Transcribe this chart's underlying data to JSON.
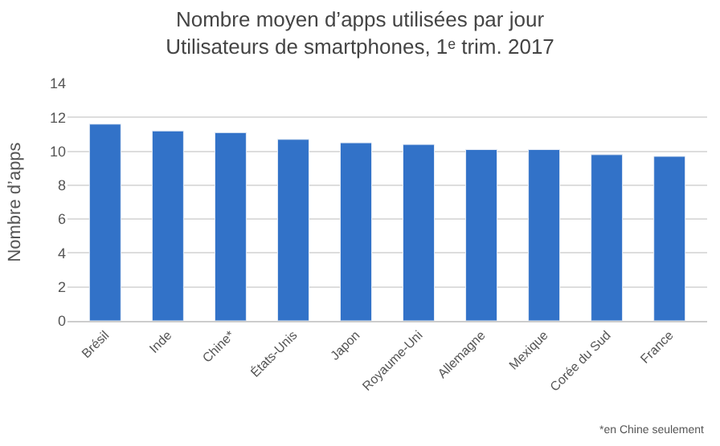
{
  "chart_data": {
    "type": "bar",
    "title": "Nombre moyen d’apps utilisées par jour",
    "subtitle": "Utilisateurs de smartphones, 1ᵉ trim. 2017",
    "ylabel": "Nombre d’apps",
    "categories": [
      "Brésil",
      "Inde",
      "Chine*",
      "États-Unis",
      "Japon",
      "Royaume-Uni",
      "Allemagne",
      "Mexique",
      "Corée du Sud",
      "France"
    ],
    "values": [
      11.6,
      11.2,
      11.1,
      10.7,
      10.5,
      10.4,
      10.1,
      10.1,
      9.8,
      9.7
    ],
    "color": "#3272c8",
    "ylim": [
      0,
      14
    ],
    "yticks": [
      0,
      2,
      4,
      6,
      8,
      10,
      12,
      14
    ],
    "grid": "y",
    "annotations": [
      "*en Chine seulement"
    ]
  }
}
